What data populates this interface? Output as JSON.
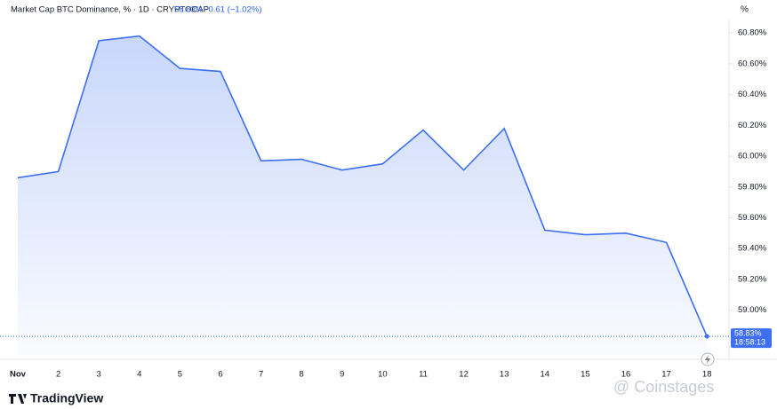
{
  "header": {
    "symbol": "Market Cap BTC Dominance, % · 1D · CRYPTOCAP",
    "price": "58.83%",
    "change": "−0.61 (−1.02%)",
    "unit": "%",
    "countdown": "18:58:13",
    "brand": "TradingView",
    "watermark": "@ Coinstages"
  },
  "chart_data": {
    "type": "line",
    "categories": [
      "Nov",
      "2",
      "3",
      "4",
      "5",
      "6",
      "7",
      "8",
      "9",
      "10",
      "11",
      "12",
      "13",
      "14",
      "15",
      "16",
      "17",
      "18"
    ],
    "series": [
      {
        "name": "BTC Dominance",
        "color": "#3d6ff0",
        "values": [
          59.86,
          59.9,
          60.75,
          60.78,
          60.57,
          60.55,
          59.97,
          59.98,
          59.91,
          59.95,
          60.17,
          59.91,
          60.18,
          59.52,
          59.49,
          59.5,
          59.44,
          58.83
        ]
      }
    ],
    "ylim": [
      58.71,
      60.87
    ],
    "yticks": [
      {
        "value": 59.0,
        "label": "59.00%"
      },
      {
        "value": 59.2,
        "label": "59.20%"
      },
      {
        "value": 59.4,
        "label": "59.40%"
      },
      {
        "value": 59.6,
        "label": "59.60%"
      },
      {
        "value": 59.8,
        "label": "59.80%"
      },
      {
        "value": 60.0,
        "label": "60.00%"
      },
      {
        "value": 60.2,
        "label": "60.20%"
      },
      {
        "value": 60.4,
        "label": "60.40%"
      },
      {
        "value": 60.6,
        "label": "60.60%"
      },
      {
        "value": 60.8,
        "label": "60.80%"
      }
    ],
    "grid": false
  }
}
